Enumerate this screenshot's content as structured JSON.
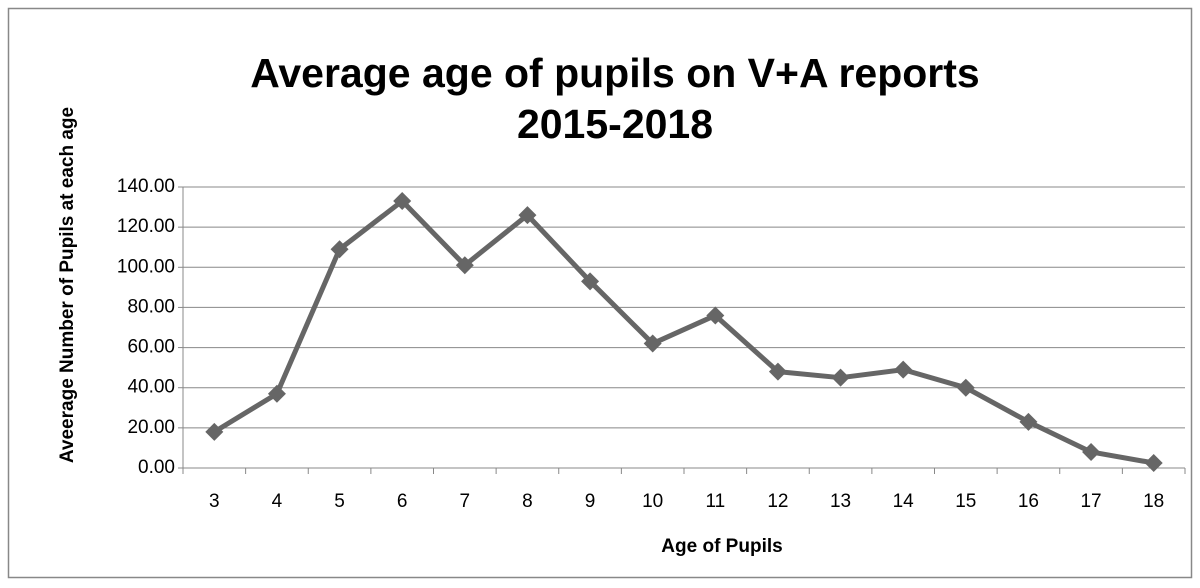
{
  "chart_data": {
    "type": "line",
    "title": [
      "Average age of pupils on V+A reports",
      "2015-2018"
    ],
    "x_label": "Age of Pupils",
    "y_label": "Aveerage Number of Pupils at each age",
    "categories": [
      "3",
      "4",
      "5",
      "6",
      "7",
      "8",
      "9",
      "10",
      "11",
      "12",
      "13",
      "14",
      "15",
      "16",
      "17",
      "18"
    ],
    "series": [
      {
        "name": "Average Number of Pupils",
        "color": "#666666",
        "values": [
          18,
          37,
          109,
          133,
          101,
          126,
          93,
          62,
          76,
          48,
          45,
          49,
          40,
          23,
          8,
          2.5
        ]
      }
    ],
    "ylim": [
      0,
      140
    ],
    "yticks": [
      {
        "value": 0,
        "label": "0.00"
      },
      {
        "value": 20,
        "label": "20.00"
      },
      {
        "value": 40,
        "label": "40.00"
      },
      {
        "value": 60,
        "label": "60.00"
      },
      {
        "value": 80,
        "label": "80.00"
      },
      {
        "value": 100,
        "label": "100.00"
      },
      {
        "value": 120,
        "label": "120.00"
      },
      {
        "value": 140,
        "label": "140.00"
      }
    ],
    "grid": true
  }
}
